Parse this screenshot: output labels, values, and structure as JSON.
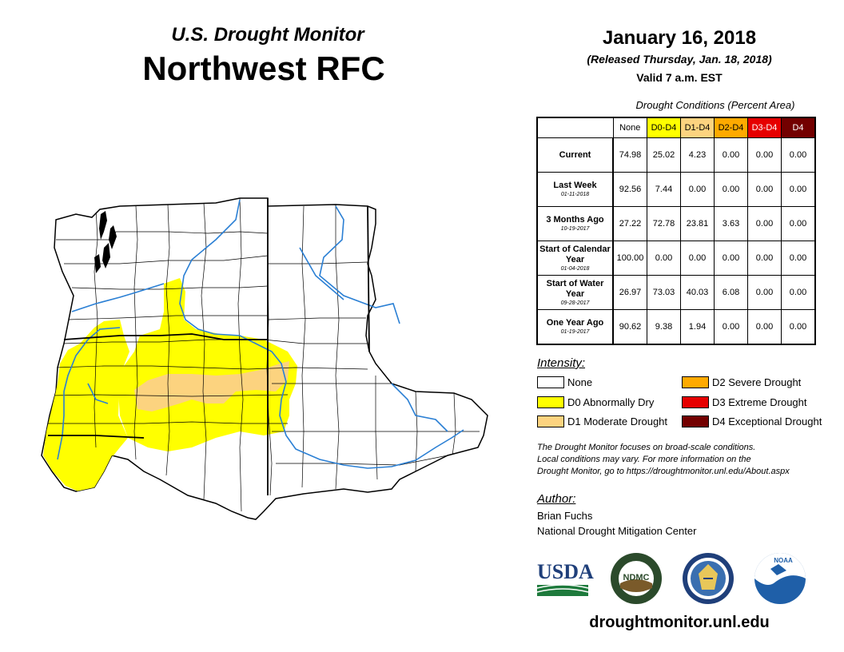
{
  "header": {
    "subtitle": "U.S. Drought Monitor",
    "title": "Northwest RFC",
    "date": "January 16, 2018",
    "released": "(Released Thursday, Jan. 18, 2018)",
    "valid": "Valid 7 a.m. EST"
  },
  "table": {
    "caption": "Drought Conditions (Percent Area)",
    "columns": [
      "None",
      "D0-D4",
      "D1-D4",
      "D2-D4",
      "D3-D4",
      "D4"
    ],
    "column_colors": [
      "#ffffff",
      "#ffff00",
      "#fcd37f",
      "#ffaa00",
      "#e60000",
      "#730000"
    ],
    "column_text_colors": [
      "#000000",
      "#000000",
      "#000000",
      "#000000",
      "#ffffff",
      "#ffffff"
    ],
    "rows": [
      {
        "label": "Current",
        "date": "",
        "values": [
          "74.98",
          "25.02",
          "4.23",
          "0.00",
          "0.00",
          "0.00"
        ]
      },
      {
        "label": "Last Week",
        "date": "01-11-2018",
        "values": [
          "92.56",
          "7.44",
          "0.00",
          "0.00",
          "0.00",
          "0.00"
        ]
      },
      {
        "label": "3 Months Ago",
        "date": "10-19-2017",
        "values": [
          "27.22",
          "72.78",
          "23.81",
          "3.63",
          "0.00",
          "0.00"
        ]
      },
      {
        "label": "Start of Calendar Year",
        "date": "01-04-2018",
        "values": [
          "100.00",
          "0.00",
          "0.00",
          "0.00",
          "0.00",
          "0.00"
        ]
      },
      {
        "label": "Start of Water Year",
        "date": "09-28-2017",
        "values": [
          "26.97",
          "73.03",
          "40.03",
          "6.08",
          "0.00",
          "0.00"
        ]
      },
      {
        "label": "One Year Ago",
        "date": "01-19-2017",
        "values": [
          "90.62",
          "9.38",
          "1.94",
          "0.00",
          "0.00",
          "0.00"
        ]
      }
    ]
  },
  "legend": {
    "title": "Intensity:",
    "items": [
      {
        "label": "None",
        "color": "#ffffff"
      },
      {
        "label": "D0 Abnormally Dry",
        "color": "#ffff00"
      },
      {
        "label": "D1 Moderate Drought",
        "color": "#fcd37f"
      },
      {
        "label": "D2 Severe Drought",
        "color": "#ffaa00"
      },
      {
        "label": "D3 Extreme Drought",
        "color": "#e60000"
      },
      {
        "label": "D4 Exceptional Drought",
        "color": "#730000"
      }
    ]
  },
  "note": {
    "line1": "The Drought Monitor focuses on broad-scale conditions.",
    "line2": "Local conditions may vary. For more information on the",
    "line3": "Drought Monitor, go to https://droughtmonitor.unl.edu/About.aspx"
  },
  "author": {
    "title": "Author:",
    "name": "Brian Fuchs",
    "org": "National Drought Mitigation Center"
  },
  "logos": {
    "usda": "USDA",
    "ndmc": "NDMC",
    "noaa": "NOAA"
  },
  "footer": {
    "site": "droughtmonitor.unl.edu"
  }
}
